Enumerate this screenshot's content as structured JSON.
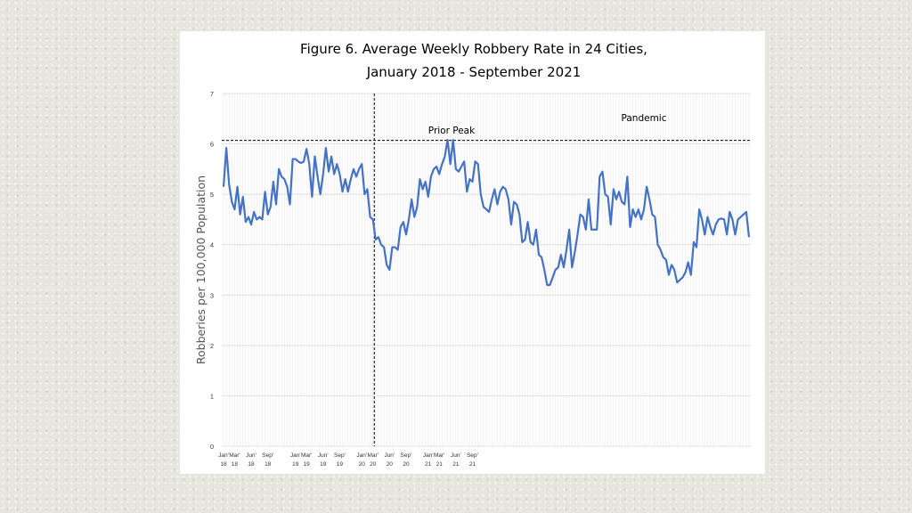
{
  "chart_data": {
    "type": "line",
    "title_line1": "Figure 6. Average Weekly Robbery Rate in 24 Cities,",
    "title_line2": "January 2018 - September 2021",
    "xlabel": "",
    "ylabel": "Robberies per 100,000 Population",
    "ylim": [
      0,
      7
    ],
    "yticks": [
      "0",
      "1",
      "2",
      "3",
      "4",
      "5",
      "6",
      "7"
    ],
    "x_tick_labels": [
      {
        "month": "Jan'",
        "year": "18",
        "week": 1
      },
      {
        "month": "Mar'",
        "year": "18",
        "week": 5
      },
      {
        "month": "Jun'",
        "year": "18",
        "week": 11
      },
      {
        "month": "Sep'",
        "year": "18",
        "week": 17
      },
      {
        "month": "Jan'",
        "year": "19",
        "week": 27
      },
      {
        "month": "Mar'",
        "year": "19",
        "week": 31
      },
      {
        "month": "Jun'",
        "year": "19",
        "week": 37
      },
      {
        "month": "Sep'",
        "year": "19",
        "week": 43
      },
      {
        "month": "Jan'",
        "year": "20",
        "week": 51
      },
      {
        "month": "Mar'",
        "year": "20",
        "week": 55
      },
      {
        "month": "Jun'",
        "year": "20",
        "week": 61
      },
      {
        "month": "Sep'",
        "year": "20",
        "week": 67
      },
      {
        "month": "Jan'",
        "year": "21",
        "week": 75
      },
      {
        "month": "Mar'",
        "year": "21",
        "week": 79
      },
      {
        "month": "Jun'",
        "year": "21",
        "week": 85
      },
      {
        "month": "Sep'",
        "year": "21",
        "week": 91
      }
    ],
    "grid": true,
    "prior_peak_value": 6.07,
    "prior_peak_label": "Prior Peak",
    "pandemic_start_week": 55.5,
    "pandemic_label": "Pandemic",
    "series_color": "#4472c4",
    "series": [
      {
        "values": [
          5.15,
          5.92,
          5.2,
          4.85,
          4.7,
          5.15,
          4.6,
          4.95,
          4.45,
          4.55,
          4.4,
          4.65,
          4.5,
          4.55,
          4.5,
          5.05,
          4.6,
          4.75,
          5.25,
          4.8,
          5.5,
          5.35,
          5.3,
          5.15,
          4.8,
          5.7,
          5.7,
          5.65,
          5.62,
          5.65,
          5.9,
          5.6,
          4.95,
          5.75,
          5.35,
          5.0,
          5.4,
          5.92,
          5.45,
          5.75,
          5.4,
          5.6,
          5.4,
          5.05,
          5.3,
          5.05,
          5.3,
          5.5,
          5.35,
          5.5,
          5.6,
          5.0,
          5.1,
          4.55,
          4.5,
          4.1,
          4.15,
          4.0,
          3.95,
          3.6,
          3.5,
          3.95,
          3.95,
          3.9,
          4.35,
          4.45,
          4.2,
          4.5,
          4.9,
          4.55,
          4.75,
          5.3,
          5.1,
          5.25,
          4.95,
          5.35,
          5.5,
          5.55,
          5.4,
          5.6,
          5.75,
          6.08,
          5.6,
          6.08,
          5.5,
          5.45,
          5.55,
          5.65,
          5.05,
          5.3,
          5.25,
          5.65,
          5.6,
          5.0,
          4.75,
          4.7,
          4.65,
          4.9,
          5.1,
          4.8,
          5.05,
          5.15,
          5.1,
          4.9,
          4.4,
          4.85,
          4.8,
          4.6,
          4.05,
          4.1,
          4.45,
          4.05,
          4.0,
          4.3,
          3.8,
          3.75,
          3.5,
          3.2,
          3.2,
          3.35,
          3.5,
          3.55,
          3.8,
          3.55,
          3.9,
          4.3,
          3.55,
          3.85,
          4.2,
          4.6,
          4.55,
          4.3,
          4.9,
          4.3,
          4.3,
          4.3,
          5.35,
          5.45,
          5.0,
          4.95,
          4.4,
          5.1,
          4.9,
          5.05,
          4.85,
          4.8,
          5.35,
          4.35,
          4.7,
          4.55,
          4.7,
          4.5,
          4.7,
          5.15,
          4.9,
          4.6,
          4.55,
          4.0,
          3.9,
          3.75,
          3.7,
          3.4,
          3.6,
          3.5,
          3.25,
          3.3,
          3.35,
          3.45,
          3.65,
          3.4,
          4.05,
          3.95,
          4.7,
          4.5,
          4.2,
          4.55,
          4.35,
          4.2,
          4.4,
          4.5,
          4.52,
          4.5,
          4.2,
          4.65,
          4.5,
          4.2,
          4.5,
          4.55,
          4.6,
          4.65,
          4.15
        ]
      }
    ]
  }
}
